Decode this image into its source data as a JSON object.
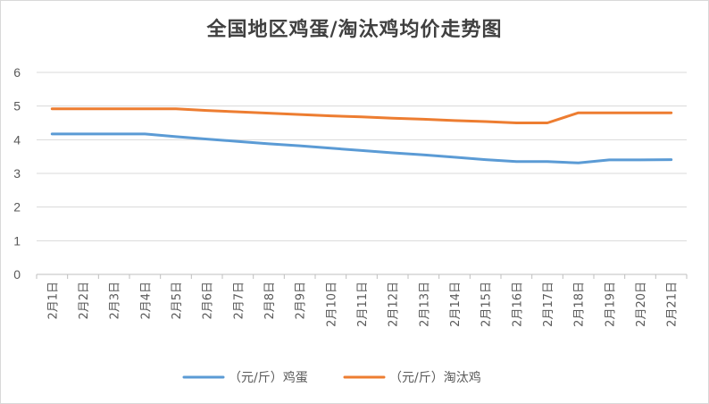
{
  "chart_data": {
    "type": "line",
    "title": "全国地区鸡蛋/淘汰鸡均价走势图",
    "categories": [
      "2月1日",
      "2月2日",
      "2月3日",
      "2月4日",
      "2月5日",
      "2月6日",
      "2月7日",
      "2月8日",
      "2月9日",
      "2月10日",
      "2月11日",
      "2月12日",
      "2月13日",
      "2月14日",
      "2月15日",
      "2月16日",
      "2月17日",
      "2月18日",
      "2月19日",
      "2月20日",
      "2月21日"
    ],
    "y_ticks": [
      "0",
      "1",
      "2",
      "3",
      "4",
      "5",
      "6"
    ],
    "ylim": [
      0,
      6
    ],
    "grid": true,
    "legend_position": "bottom",
    "series": [
      {
        "name": "（元/斤）鸡蛋",
        "color": "#5b9bd5",
        "values": [
          4.17,
          4.17,
          4.17,
          4.17,
          4.09,
          4.02,
          3.95,
          3.88,
          3.82,
          3.75,
          3.68,
          3.61,
          3.55,
          3.48,
          3.41,
          3.35,
          3.35,
          3.31,
          3.4,
          3.4,
          3.41
        ]
      },
      {
        "name": "（元/斤）淘汰鸡",
        "color": "#ed7d31",
        "values": [
          4.92,
          4.92,
          4.92,
          4.92,
          4.92,
          4.87,
          4.83,
          4.79,
          4.75,
          4.71,
          4.68,
          4.64,
          4.61,
          4.57,
          4.54,
          4.5,
          4.5,
          4.8,
          4.8,
          4.8,
          4.8
        ]
      }
    ]
  }
}
